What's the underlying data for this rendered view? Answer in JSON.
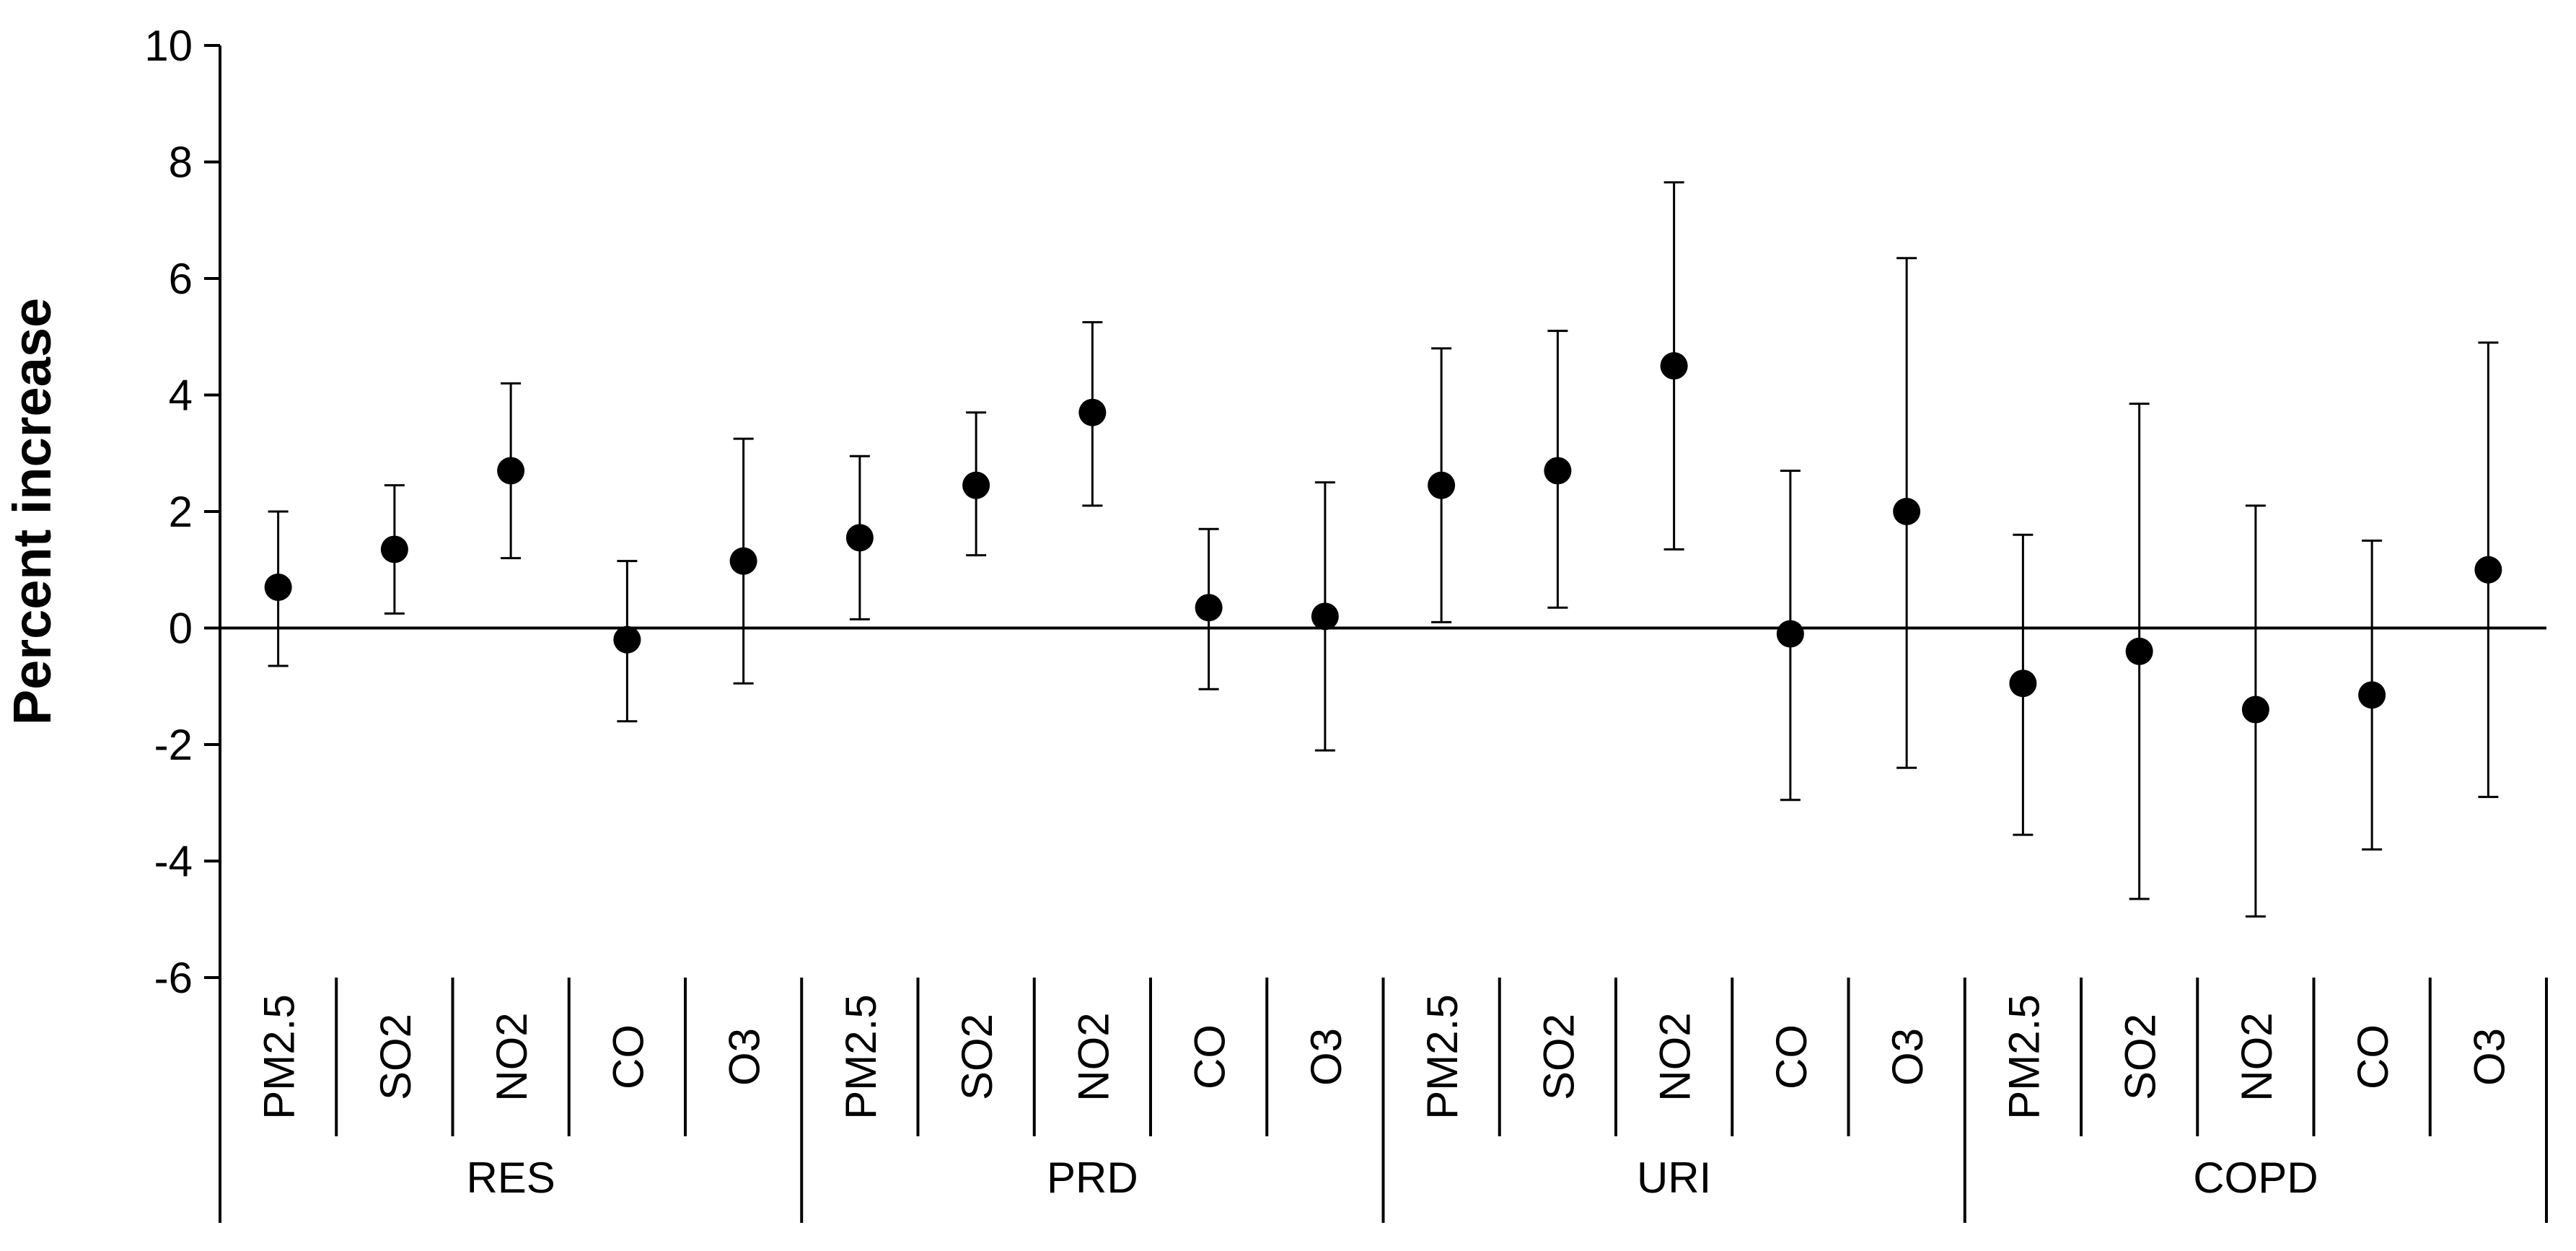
{
  "chart_data": {
    "type": "scatter",
    "subtype": "point-with-error-bars",
    "ylabel": "Percent increase",
    "xlabel": "",
    "ylim": [
      -6,
      10
    ],
    "yticks": [
      -6,
      -4,
      -2,
      0,
      2,
      4,
      6,
      8,
      10
    ],
    "grid": false,
    "legend": "none",
    "marker_color": "#000000",
    "groups": [
      {
        "name": "RES",
        "categories": [
          "PM2.5",
          "SO2",
          "NO2",
          "CO",
          "O3"
        ]
      },
      {
        "name": "PRD",
        "categories": [
          "PM2.5",
          "SO2",
          "NO2",
          "CO",
          "O3"
        ]
      },
      {
        "name": "URI",
        "categories": [
          "PM2.5",
          "SO2",
          "NO2",
          "CO",
          "O3"
        ]
      },
      {
        "name": "COPD",
        "categories": [
          "PM2.5",
          "SO2",
          "NO2",
          "CO",
          "O3"
        ]
      }
    ],
    "points": [
      {
        "group": "RES",
        "category": "PM2.5",
        "value": 0.7,
        "lower": -0.65,
        "upper": 2.0
      },
      {
        "group": "RES",
        "category": "SO2",
        "value": 1.35,
        "lower": 0.25,
        "upper": 2.45
      },
      {
        "group": "RES",
        "category": "NO2",
        "value": 2.7,
        "lower": 1.2,
        "upper": 4.2
      },
      {
        "group": "RES",
        "category": "CO",
        "value": -0.2,
        "lower": -1.6,
        "upper": 1.15
      },
      {
        "group": "RES",
        "category": "O3",
        "value": 1.15,
        "lower": -0.95,
        "upper": 3.25
      },
      {
        "group": "PRD",
        "category": "PM2.5",
        "value": 1.55,
        "lower": 0.15,
        "upper": 2.95
      },
      {
        "group": "PRD",
        "category": "SO2",
        "value": 2.45,
        "lower": 1.25,
        "upper": 3.7
      },
      {
        "group": "PRD",
        "category": "NO2",
        "value": 3.7,
        "lower": 2.1,
        "upper": 5.25
      },
      {
        "group": "PRD",
        "category": "CO",
        "value": 0.35,
        "lower": -1.05,
        "upper": 1.7
      },
      {
        "group": "PRD",
        "category": "O3",
        "value": 0.2,
        "lower": -2.1,
        "upper": 2.5
      },
      {
        "group": "URI",
        "category": "PM2.5",
        "value": 2.45,
        "lower": 0.1,
        "upper": 4.8
      },
      {
        "group": "URI",
        "category": "SO2",
        "value": 2.7,
        "lower": 0.35,
        "upper": 5.1
      },
      {
        "group": "URI",
        "category": "NO2",
        "value": 4.5,
        "lower": 1.35,
        "upper": 7.65
      },
      {
        "group": "URI",
        "category": "CO",
        "value": -0.1,
        "lower": -2.95,
        "upper": 2.7
      },
      {
        "group": "URI",
        "category": "O3",
        "value": 2.0,
        "lower": -2.4,
        "upper": 6.35
      },
      {
        "group": "COPD",
        "category": "PM2.5",
        "value": -0.95,
        "lower": -3.55,
        "upper": 1.6
      },
      {
        "group": "COPD",
        "category": "SO2",
        "value": -0.4,
        "lower": -4.65,
        "upper": 3.85
      },
      {
        "group": "COPD",
        "category": "NO2",
        "value": -1.4,
        "lower": -4.95,
        "upper": 2.1
      },
      {
        "group": "COPD",
        "category": "CO",
        "value": -1.15,
        "lower": -3.8,
        "upper": 1.5
      },
      {
        "group": "COPD",
        "category": "O3",
        "value": 1.0,
        "lower": -2.9,
        "upper": 4.9
      }
    ]
  }
}
